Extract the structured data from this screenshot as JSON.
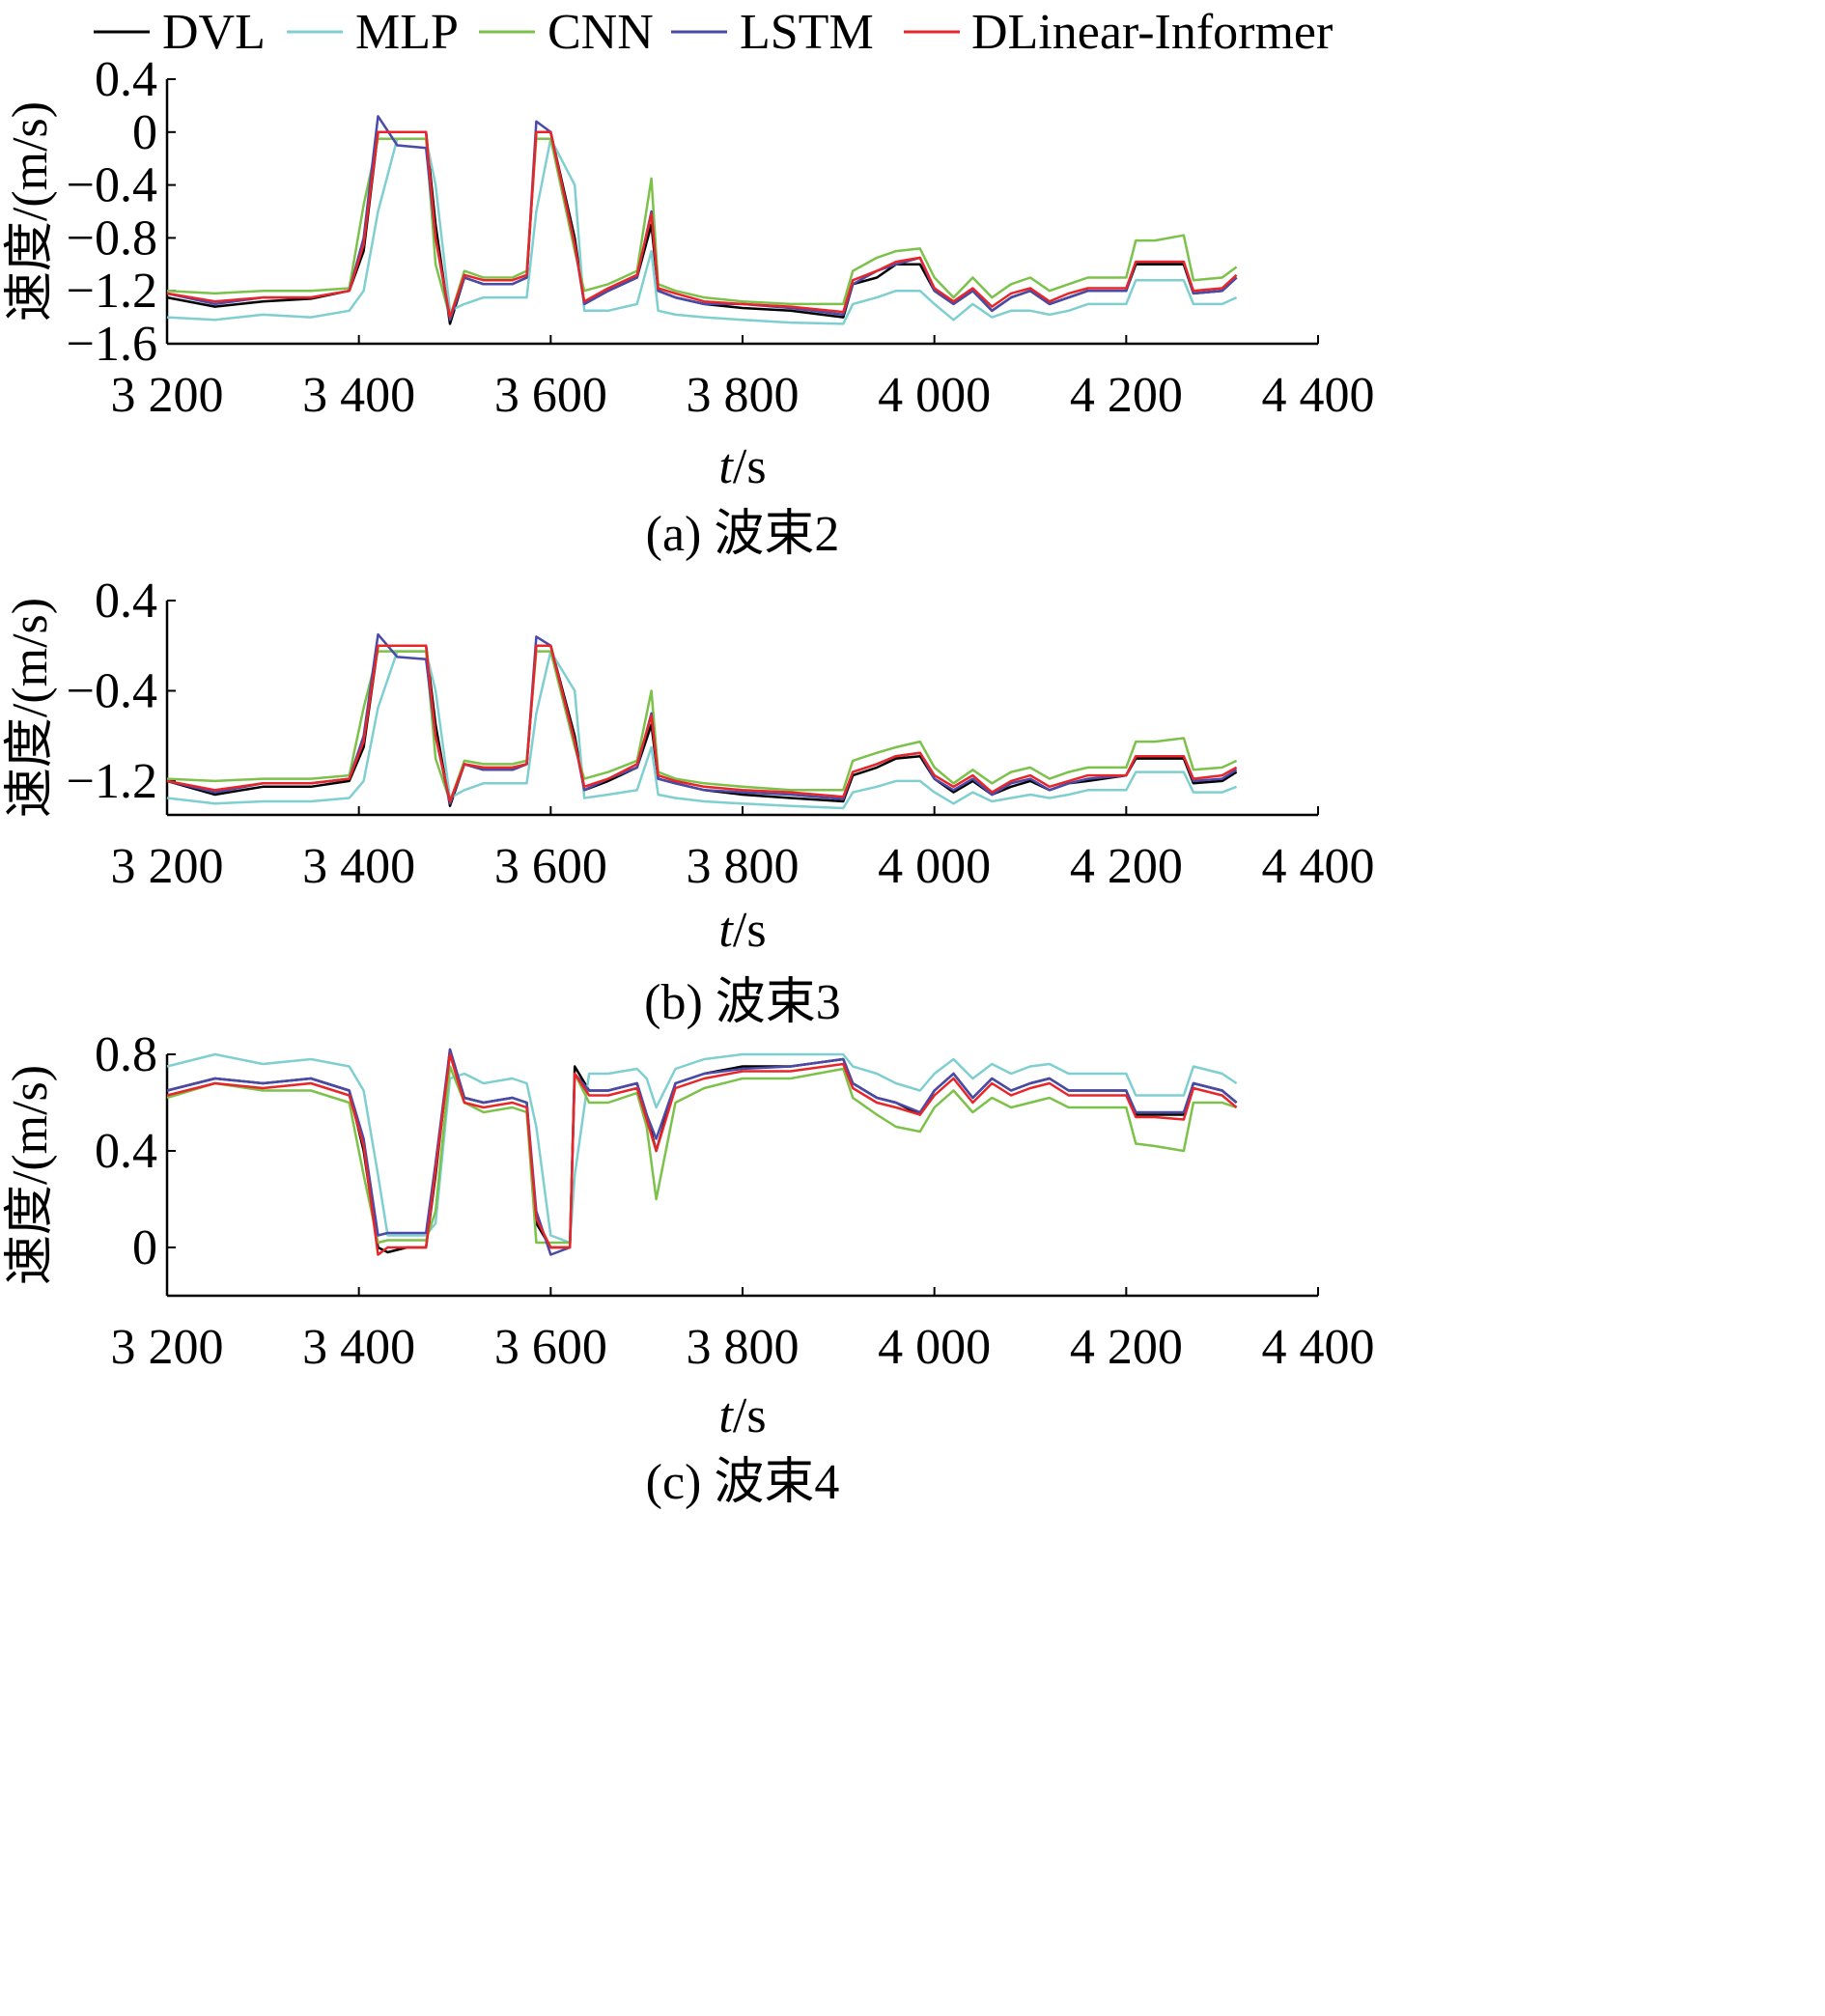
{
  "legend": [
    {
      "name": "DVL",
      "color": "#000000"
    },
    {
      "name": "MLP",
      "color": "#7fcfd0"
    },
    {
      "name": "CNN",
      "color": "#7cc24a"
    },
    {
      "name": "LSTM",
      "color": "#4a4aa8"
    },
    {
      "name": "DLinear-Informer",
      "color": "#e8262a"
    }
  ],
  "x_ticks": [
    "3 200",
    "3 400",
    "3 600",
    "3 800",
    "4 000",
    "4 200",
    "4 400"
  ],
  "chart_data": [
    {
      "type": "line",
      "caption": "(a) 波束2",
      "xlabel_italic": "t",
      "xlabel_unit": "/s",
      "ylabel": "速度/(m/s)",
      "xlim": [
        3200,
        4400
      ],
      "ylim": [
        -1.6,
        0.4
      ],
      "yticks": [
        0.4,
        0,
        -0.4,
        -0.8,
        -1.2,
        -1.6
      ],
      "ytick_labels": [
        "0.4",
        "0",
        "−0.4",
        "−0.8",
        "−1.2",
        "−1.6"
      ],
      "x": [
        3200,
        3250,
        3300,
        3350,
        3390,
        3405,
        3420,
        3440,
        3470,
        3480,
        3495,
        3510,
        3530,
        3560,
        3575,
        3585,
        3600,
        3625,
        3635,
        3660,
        3690,
        3705,
        3712,
        3730,
        3760,
        3800,
        3850,
        3905,
        3915,
        3940,
        3960,
        3985,
        4000,
        4020,
        4040,
        4060,
        4080,
        4100,
        4120,
        4140,
        4160,
        4200,
        4210,
        4230,
        4260,
        4270,
        4300,
        4315
      ],
      "series": [
        {
          "name": "DVL",
          "y": [
            -1.25,
            -1.32,
            -1.28,
            -1.26,
            -1.2,
            -0.9,
            0.0,
            0.0,
            0.0,
            -0.7,
            -1.45,
            -1.1,
            -1.15,
            -1.15,
            -1.1,
            0.0,
            0.0,
            -0.8,
            -1.3,
            -1.2,
            -1.1,
            -0.7,
            -1.2,
            -1.25,
            -1.3,
            -1.33,
            -1.35,
            -1.4,
            -1.15,
            -1.1,
            -1.0,
            -1.0,
            -1.2,
            -1.3,
            -1.2,
            -1.35,
            -1.25,
            -1.2,
            -1.3,
            -1.25,
            -1.2,
            -1.2,
            -1.0,
            -1.0,
            -1.0,
            -1.22,
            -1.2,
            -1.1
          ]
        },
        {
          "name": "MLP",
          "y": [
            -1.4,
            -1.42,
            -1.38,
            -1.4,
            -1.35,
            -1.2,
            -0.6,
            -0.05,
            -0.05,
            -0.4,
            -1.35,
            -1.3,
            -1.25,
            -1.25,
            -1.25,
            -0.6,
            -0.05,
            -0.4,
            -1.35,
            -1.35,
            -1.3,
            -0.9,
            -1.35,
            -1.38,
            -1.4,
            -1.42,
            -1.44,
            -1.45,
            -1.3,
            -1.25,
            -1.2,
            -1.2,
            -1.3,
            -1.42,
            -1.3,
            -1.4,
            -1.35,
            -1.35,
            -1.38,
            -1.35,
            -1.3,
            -1.3,
            -1.12,
            -1.12,
            -1.12,
            -1.3,
            -1.3,
            -1.25
          ]
        },
        {
          "name": "CNN",
          "y": [
            -1.2,
            -1.22,
            -1.2,
            -1.2,
            -1.18,
            -0.55,
            -0.05,
            -0.05,
            -0.05,
            -1.0,
            -1.4,
            -1.05,
            -1.1,
            -1.1,
            -1.05,
            -0.05,
            -0.05,
            -0.9,
            -1.2,
            -1.15,
            -1.05,
            -0.35,
            -1.15,
            -1.2,
            -1.25,
            -1.28,
            -1.3,
            -1.3,
            -1.05,
            -0.95,
            -0.9,
            -0.88,
            -1.1,
            -1.25,
            -1.1,
            -1.25,
            -1.15,
            -1.1,
            -1.2,
            -1.15,
            -1.1,
            -1.1,
            -0.82,
            -0.82,
            -0.78,
            -1.12,
            -1.1,
            -1.02
          ]
        },
        {
          "name": "LSTM",
          "y": [
            -1.22,
            -1.3,
            -1.25,
            -1.25,
            -1.2,
            -0.8,
            0.12,
            -0.1,
            -0.12,
            -0.8,
            -1.42,
            -1.1,
            -1.15,
            -1.15,
            -1.1,
            0.08,
            0.0,
            -0.85,
            -1.3,
            -1.2,
            -1.1,
            -0.6,
            -1.2,
            -1.25,
            -1.3,
            -1.3,
            -1.33,
            -1.38,
            -1.15,
            -1.05,
            -1.0,
            -0.95,
            -1.2,
            -1.3,
            -1.2,
            -1.35,
            -1.25,
            -1.2,
            -1.3,
            -1.25,
            -1.2,
            -1.2,
            -0.98,
            -0.98,
            -0.98,
            -1.22,
            -1.2,
            -1.1
          ]
        },
        {
          "name": "DLinear-Informer",
          "y": [
            -1.22,
            -1.28,
            -1.25,
            -1.25,
            -1.2,
            -0.85,
            0.0,
            0.0,
            0.0,
            -0.8,
            -1.4,
            -1.08,
            -1.12,
            -1.12,
            -1.08,
            0.0,
            0.0,
            -0.85,
            -1.28,
            -1.18,
            -1.08,
            -0.62,
            -1.18,
            -1.22,
            -1.28,
            -1.3,
            -1.32,
            -1.36,
            -1.12,
            -1.05,
            -0.98,
            -0.95,
            -1.18,
            -1.28,
            -1.18,
            -1.32,
            -1.22,
            -1.18,
            -1.28,
            -1.22,
            -1.18,
            -1.18,
            -0.98,
            -0.98,
            -0.98,
            -1.2,
            -1.18,
            -1.08
          ]
        }
      ]
    },
    {
      "type": "line",
      "caption": "(b) 波束3",
      "xlabel_italic": "t",
      "xlabel_unit": "/s",
      "ylabel": "速度/(m/s)",
      "xlim": [
        3200,
        4400
      ],
      "ylim": [
        -1.5,
        0.4
      ],
      "yticks": [
        0.4,
        -0.4,
        -1.2
      ],
      "ytick_labels": [
        "0.4",
        "−0.4",
        "−1.2"
      ],
      "x": [
        3200,
        3250,
        3300,
        3350,
        3390,
        3405,
        3420,
        3440,
        3470,
        3480,
        3495,
        3510,
        3530,
        3560,
        3575,
        3585,
        3600,
        3625,
        3635,
        3660,
        3690,
        3705,
        3712,
        3730,
        3760,
        3800,
        3850,
        3905,
        3915,
        3940,
        3960,
        3985,
        4000,
        4020,
        4040,
        4060,
        4080,
        4100,
        4120,
        4140,
        4160,
        4200,
        4210,
        4230,
        4260,
        4270,
        4300,
        4315
      ],
      "series": [
        {
          "name": "DVL",
          "y": [
            -1.2,
            -1.32,
            -1.25,
            -1.25,
            -1.2,
            -0.9,
            0.0,
            0.0,
            0.0,
            -0.7,
            -1.42,
            -1.05,
            -1.1,
            -1.1,
            -1.05,
            0.0,
            0.0,
            -0.8,
            -1.28,
            -1.2,
            -1.08,
            -0.7,
            -1.18,
            -1.22,
            -1.28,
            -1.32,
            -1.35,
            -1.38,
            -1.15,
            -1.08,
            -1.0,
            -0.98,
            -1.18,
            -1.3,
            -1.2,
            -1.32,
            -1.25,
            -1.2,
            -1.28,
            -1.22,
            -1.2,
            -1.15,
            -1.0,
            -1.0,
            -1.0,
            -1.22,
            -1.2,
            -1.12
          ]
        },
        {
          "name": "MLP",
          "y": [
            -1.35,
            -1.4,
            -1.38,
            -1.38,
            -1.35,
            -1.2,
            -0.55,
            -0.05,
            -0.05,
            -0.4,
            -1.35,
            -1.28,
            -1.22,
            -1.22,
            -1.22,
            -0.6,
            -0.05,
            -0.4,
            -1.35,
            -1.32,
            -1.28,
            -0.9,
            -1.32,
            -1.35,
            -1.38,
            -1.4,
            -1.42,
            -1.44,
            -1.3,
            -1.25,
            -1.2,
            -1.2,
            -1.3,
            -1.4,
            -1.3,
            -1.38,
            -1.35,
            -1.32,
            -1.35,
            -1.32,
            -1.28,
            -1.28,
            -1.12,
            -1.12,
            -1.12,
            -1.3,
            -1.3,
            -1.25
          ]
        },
        {
          "name": "CNN",
          "y": [
            -1.18,
            -1.2,
            -1.18,
            -1.18,
            -1.15,
            -0.55,
            -0.05,
            -0.05,
            -0.05,
            -1.0,
            -1.38,
            -1.02,
            -1.05,
            -1.05,
            -1.02,
            -0.05,
            -0.05,
            -0.9,
            -1.18,
            -1.12,
            -1.02,
            -0.4,
            -1.12,
            -1.18,
            -1.22,
            -1.25,
            -1.28,
            -1.28,
            -1.02,
            -0.95,
            -0.9,
            -0.85,
            -1.08,
            -1.22,
            -1.1,
            -1.22,
            -1.12,
            -1.08,
            -1.18,
            -1.12,
            -1.08,
            -1.08,
            -0.85,
            -0.85,
            -0.82,
            -1.1,
            -1.08,
            -1.02
          ]
        },
        {
          "name": "LSTM",
          "y": [
            -1.2,
            -1.3,
            -1.22,
            -1.22,
            -1.18,
            -0.8,
            0.1,
            -0.1,
            -0.12,
            -0.8,
            -1.4,
            -1.05,
            -1.1,
            -1.1,
            -1.05,
            0.08,
            0.0,
            -0.85,
            -1.28,
            -1.18,
            -1.08,
            -0.6,
            -1.18,
            -1.22,
            -1.28,
            -1.3,
            -1.32,
            -1.36,
            -1.12,
            -1.05,
            -0.98,
            -0.95,
            -1.18,
            -1.28,
            -1.18,
            -1.32,
            -1.22,
            -1.18,
            -1.28,
            -1.22,
            -1.18,
            -1.15,
            -0.98,
            -0.98,
            -0.98,
            -1.2,
            -1.18,
            -1.1
          ]
        },
        {
          "name": "DLinear-Informer",
          "y": [
            -1.2,
            -1.28,
            -1.22,
            -1.22,
            -1.18,
            -0.85,
            0.0,
            0.0,
            0.0,
            -0.8,
            -1.38,
            -1.05,
            -1.08,
            -1.08,
            -1.05,
            0.0,
            0.0,
            -0.85,
            -1.25,
            -1.18,
            -1.05,
            -0.62,
            -1.15,
            -1.2,
            -1.25,
            -1.28,
            -1.3,
            -1.34,
            -1.12,
            -1.05,
            -0.98,
            -0.95,
            -1.15,
            -1.25,
            -1.15,
            -1.3,
            -1.2,
            -1.15,
            -1.25,
            -1.2,
            -1.15,
            -1.15,
            -0.98,
            -0.98,
            -0.98,
            -1.18,
            -1.15,
            -1.08
          ]
        }
      ]
    },
    {
      "type": "line",
      "caption": "(c) 波束4",
      "xlabel_italic": "t",
      "xlabel_unit": "/s",
      "ylabel": "速度/(m/s)",
      "xlim": [
        3200,
        4400
      ],
      "ylim": [
        -0.2,
        0.8
      ],
      "yticks": [
        0.8,
        0.4,
        0
      ],
      "ytick_labels": [
        "0.8",
        "0.4",
        "0"
      ],
      "x": [
        3200,
        3250,
        3300,
        3350,
        3390,
        3405,
        3420,
        3430,
        3450,
        3470,
        3480,
        3495,
        3510,
        3530,
        3560,
        3575,
        3585,
        3600,
        3620,
        3625,
        3640,
        3660,
        3690,
        3700,
        3710,
        3730,
        3760,
        3800,
        3850,
        3905,
        3915,
        3940,
        3960,
        3985,
        4000,
        4020,
        4040,
        4060,
        4080,
        4100,
        4120,
        4140,
        4160,
        4200,
        4210,
        4230,
        4260,
        4270,
        4300,
        4315
      ],
      "series": [
        {
          "name": "DVL",
          "y": [
            0.65,
            0.7,
            0.68,
            0.7,
            0.65,
            0.4,
            0.0,
            -0.02,
            0.0,
            0.0,
            0.3,
            0.82,
            0.62,
            0.6,
            0.62,
            0.6,
            0.1,
            0.0,
            0.0,
            0.75,
            0.65,
            0.65,
            0.68,
            0.55,
            0.4,
            0.68,
            0.72,
            0.75,
            0.75,
            0.78,
            0.68,
            0.62,
            0.6,
            0.55,
            0.65,
            0.72,
            0.62,
            0.7,
            0.65,
            0.68,
            0.7,
            0.65,
            0.65,
            0.65,
            0.55,
            0.55,
            0.55,
            0.68,
            0.65,
            0.6
          ]
        },
        {
          "name": "MLP",
          "y": [
            0.75,
            0.8,
            0.76,
            0.78,
            0.75,
            0.65,
            0.3,
            0.05,
            0.05,
            0.05,
            0.1,
            0.7,
            0.72,
            0.68,
            0.7,
            0.68,
            0.5,
            0.05,
            0.02,
            0.3,
            0.72,
            0.72,
            0.74,
            0.7,
            0.58,
            0.74,
            0.78,
            0.8,
            0.8,
            0.8,
            0.75,
            0.72,
            0.68,
            0.65,
            0.72,
            0.78,
            0.7,
            0.76,
            0.72,
            0.75,
            0.76,
            0.72,
            0.72,
            0.72,
            0.63,
            0.63,
            0.63,
            0.75,
            0.72,
            0.68
          ]
        },
        {
          "name": "CNN",
          "y": [
            0.62,
            0.68,
            0.65,
            0.65,
            0.6,
            0.3,
            0.02,
            0.03,
            0.03,
            0.03,
            0.15,
            0.75,
            0.6,
            0.56,
            0.58,
            0.56,
            0.02,
            0.02,
            0.02,
            0.72,
            0.6,
            0.6,
            0.64,
            0.5,
            0.2,
            0.6,
            0.66,
            0.7,
            0.7,
            0.74,
            0.62,
            0.55,
            0.5,
            0.48,
            0.58,
            0.65,
            0.56,
            0.62,
            0.58,
            0.6,
            0.62,
            0.58,
            0.58,
            0.58,
            0.43,
            0.42,
            0.4,
            0.6,
            0.6,
            0.58
          ]
        },
        {
          "name": "LSTM",
          "y": [
            0.65,
            0.7,
            0.68,
            0.7,
            0.65,
            0.45,
            0.05,
            0.06,
            0.06,
            0.06,
            0.35,
            0.82,
            0.62,
            0.6,
            0.62,
            0.6,
            0.15,
            -0.03,
            0.0,
            0.72,
            0.65,
            0.65,
            0.68,
            0.55,
            0.45,
            0.68,
            0.72,
            0.74,
            0.75,
            0.78,
            0.68,
            0.62,
            0.6,
            0.56,
            0.65,
            0.72,
            0.62,
            0.7,
            0.65,
            0.68,
            0.7,
            0.65,
            0.65,
            0.65,
            0.56,
            0.56,
            0.56,
            0.68,
            0.65,
            0.6
          ]
        },
        {
          "name": "DLinear-Informer",
          "y": [
            0.63,
            0.68,
            0.66,
            0.68,
            0.63,
            0.42,
            -0.03,
            0.0,
            0.0,
            0.0,
            0.32,
            0.8,
            0.6,
            0.58,
            0.6,
            0.58,
            0.12,
            0.0,
            0.0,
            0.72,
            0.63,
            0.63,
            0.66,
            0.53,
            0.4,
            0.66,
            0.7,
            0.73,
            0.73,
            0.76,
            0.66,
            0.6,
            0.58,
            0.55,
            0.63,
            0.7,
            0.6,
            0.68,
            0.63,
            0.66,
            0.68,
            0.63,
            0.63,
            0.63,
            0.54,
            0.54,
            0.53,
            0.66,
            0.63,
            0.58
          ]
        }
      ]
    }
  ]
}
